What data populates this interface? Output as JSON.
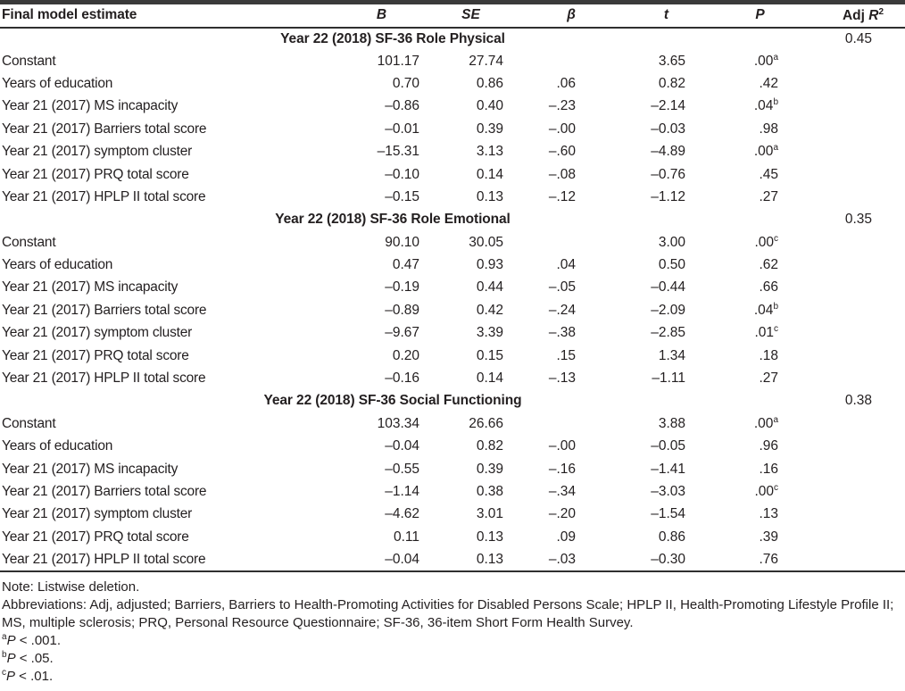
{
  "table": {
    "header": {
      "label": "Final model estimate",
      "b": "B",
      "se": "SE",
      "beta": "β",
      "t": "t",
      "p": "P",
      "adj": "Adj ",
      "r": "R",
      "r_sup": "2"
    },
    "sections": [
      {
        "title": "Year 22 (2018) SF-36 Role Physical",
        "adj_r2": "0.45",
        "rows": [
          {
            "label": "Constant",
            "b": "101.17",
            "se": "27.74",
            "beta": "",
            "t": "3.65",
            "p": ".00",
            "p_sup": "a"
          },
          {
            "label": "Years of education",
            "b": "0.70",
            "se": "0.86",
            "beta": ".06",
            "t": "0.82",
            "p": ".42"
          },
          {
            "label": "Year 21 (2017) MS incapacity",
            "b": "–0.86",
            "se": "0.40",
            "beta": "–.23",
            "t": "–2.14",
            "p": ".04",
            "p_sup": "b"
          },
          {
            "label": "Year 21 (2017) Barriers total score",
            "b": "–0.01",
            "se": "0.39",
            "beta": "–.00",
            "t": "–0.03",
            "p": ".98"
          },
          {
            "label": "Year 21 (2017) symptom cluster",
            "b": "–15.31",
            "se": "3.13",
            "beta": "–.60",
            "t": "–4.89",
            "p": ".00",
            "p_sup": "a"
          },
          {
            "label": "Year 21 (2017) PRQ total score",
            "b": "–0.10",
            "se": "0.14",
            "beta": "–.08",
            "t": "–0.76",
            "p": ".45"
          },
          {
            "label": "Year 21 (2017) HPLP II total score",
            "b": "–0.15",
            "se": "0.13",
            "beta": "–.12",
            "t": "–1.12",
            "p": ".27"
          }
        ]
      },
      {
        "title": "Year 22 (2018) SF-36 Role Emotional",
        "adj_r2": "0.35",
        "rows": [
          {
            "label": "Constant",
            "b": "90.10",
            "se": "30.05",
            "beta": "",
            "t": "3.00",
            "p": ".00",
            "p_sup": "c"
          },
          {
            "label": "Years of education",
            "b": "0.47",
            "se": "0.93",
            "beta": ".04",
            "t": "0.50",
            "p": ".62"
          },
          {
            "label": "Year 21 (2017) MS incapacity",
            "b": "–0.19",
            "se": "0.44",
            "beta": "–.05",
            "t": "–0.44",
            "p": ".66"
          },
          {
            "label": "Year 21 (2017) Barriers total score",
            "b": "–0.89",
            "se": "0.42",
            "beta": "–.24",
            "t": "–2.09",
            "p": ".04",
            "p_sup": "b"
          },
          {
            "label": "Year 21 (2017) symptom cluster",
            "b": "–9.67",
            "se": "3.39",
            "beta": "–.38",
            "t": "–2.85",
            "p": ".01",
            "p_sup": "c"
          },
          {
            "label": "Year 21 (2017) PRQ total score",
            "b": "0.20",
            "se": "0.15",
            "beta": ".15",
            "t": "1.34",
            "p": ".18"
          },
          {
            "label": "Year 21 (2017) HPLP II total score",
            "b": "–0.16",
            "se": "0.14",
            "beta": "–.13",
            "t": "–1.11",
            "p": ".27"
          }
        ]
      },
      {
        "title": "Year 22 (2018) SF-36 Social Functioning",
        "adj_r2": "0.38",
        "rows": [
          {
            "label": "Constant",
            "b": "103.34",
            "se": "26.66",
            "beta": "",
            "t": "3.88",
            "p": ".00",
            "p_sup": "a"
          },
          {
            "label": "Years of education",
            "b": "–0.04",
            "se": "0.82",
            "beta": "–.00",
            "t": "–0.05",
            "p": ".96"
          },
          {
            "label": "Year 21 (2017) MS incapacity",
            "b": "–0.55",
            "se": "0.39",
            "beta": "–.16",
            "t": "–1.41",
            "p": ".16"
          },
          {
            "label": "Year 21 (2017) Barriers total score",
            "b": "–1.14",
            "se": "0.38",
            "beta": "–.34",
            "t": "–3.03",
            "p": ".00",
            "p_sup": "c"
          },
          {
            "label": "Year 21 (2017) symptom cluster",
            "b": "–4.62",
            "se": "3.01",
            "beta": "–.20",
            "t": "–1.54",
            "p": ".13"
          },
          {
            "label": "Year 21 (2017) PRQ total score",
            "b": "0.11",
            "se": "0.13",
            "beta": ".09",
            "t": "0.86",
            "p": ".39"
          },
          {
            "label": "Year 21 (2017) HPLP II total score",
            "b": "–0.04",
            "se": "0.13",
            "beta": "–.03",
            "t": "–0.30",
            "p": ".76"
          }
        ]
      }
    ]
  },
  "footnotes": {
    "note": "Note: Listwise deletion.",
    "abbreviations": "Abbreviations: Adj, adjusted; Barriers, Barriers to Health-Promoting Activities for Disabled Persons Scale; HPLP II, Health-Promoting Lifestyle Profile II; MS, multiple sclerosis; PRQ, Personal Resource Questionnaire; SF-36, 36-item Short Form Health Survey.",
    "sig": [
      {
        "sup": "a",
        "var": "P",
        "text": " < .001."
      },
      {
        "sup": "b",
        "var": "P",
        "text": " < .05."
      },
      {
        "sup": "c",
        "var": "P",
        "text": " < .01."
      }
    ]
  },
  "colors": {
    "text": "#231f20",
    "rule": "#2f2f2f"
  }
}
